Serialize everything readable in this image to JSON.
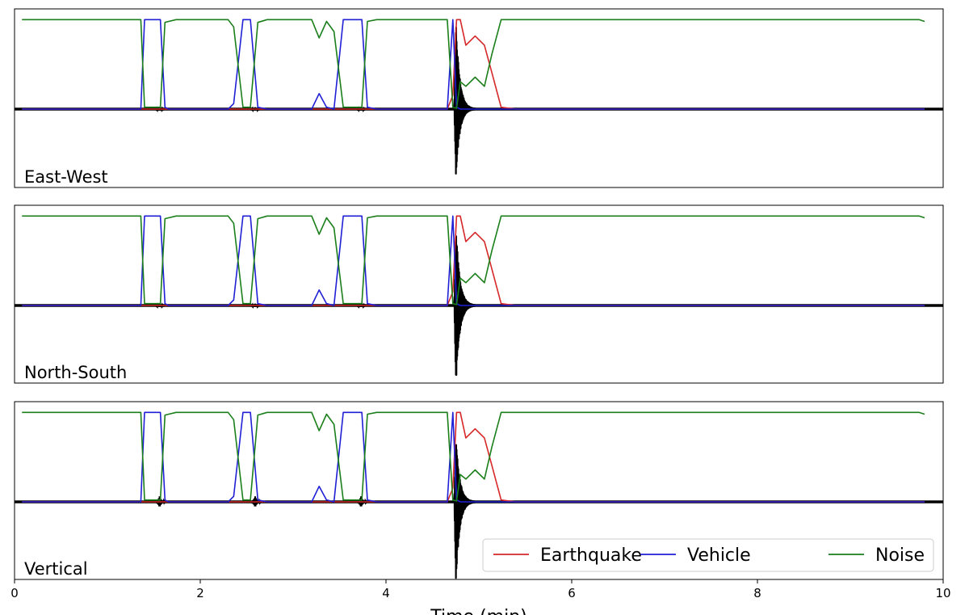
{
  "chart_data": {
    "type": "line",
    "xlabel": "Time (min)",
    "xlim": [
      0,
      10
    ],
    "x_ticks": [
      "0",
      "2",
      "4",
      "6",
      "8",
      "10"
    ],
    "shared_x_axis": true,
    "grid": false,
    "legend": {
      "placement": "bottom-right",
      "panel": 2,
      "entries": [
        "Earthquake",
        "Vehicle",
        "Noise"
      ]
    },
    "colors": {
      "Earthquake": "#d62728",
      "Vehicle": "#1f1fd6",
      "Noise": "#1a7f1a",
      "waveform": "#000000"
    },
    "x_breakpoints": [
      0.08,
      1.33,
      1.36,
      1.4,
      1.57,
      1.62,
      1.66,
      1.74,
      1.84,
      1.96,
      2.3,
      2.36,
      2.46,
      2.54,
      2.62,
      2.72,
      2.78,
      2.9,
      3.2,
      3.28,
      3.36,
      3.44,
      3.54,
      3.64,
      3.74,
      3.8,
      3.9,
      3.96,
      4.06,
      4.66,
      4.72,
      4.76,
      4.8,
      4.86,
      4.96,
      5.06,
      5.14,
      5.24,
      5.4,
      9.5,
      9.74,
      9.8
    ],
    "series": [
      {
        "name": "Earthquake",
        "values": [
          0,
          0,
          0,
          0,
          0,
          0,
          0,
          0,
          0,
          0,
          0,
          0,
          0,
          0,
          0,
          0,
          0,
          0,
          0,
          0,
          0,
          0,
          0,
          0,
          0,
          0,
          0,
          0,
          0,
          0,
          0.15,
          0.98,
          0.98,
          0.7,
          0.8,
          0.7,
          0.4,
          0.02,
          0,
          0,
          0,
          0
        ]
      },
      {
        "name": "Vehicle",
        "values": [
          0,
          0,
          0,
          0.98,
          0.98,
          0.02,
          0,
          0,
          0,
          0,
          0,
          0.06,
          0.98,
          0.98,
          0.02,
          0,
          0,
          0,
          0,
          0.17,
          0.02,
          0,
          0.98,
          0.98,
          0.98,
          0.02,
          0,
          0,
          0,
          0,
          0.98,
          0.02,
          0,
          0,
          0,
          0,
          0,
          0,
          0,
          0,
          0,
          0
        ]
      },
      {
        "name": "Noise",
        "values": [
          0.98,
          0.98,
          0.98,
          0.02,
          0.02,
          0.95,
          0.96,
          0.98,
          0.98,
          0.98,
          0.98,
          0.9,
          0.02,
          0.02,
          0.95,
          0.98,
          0.98,
          0.98,
          0.98,
          0.78,
          0.96,
          0.85,
          0.02,
          0.02,
          0.02,
          0.96,
          0.98,
          0.98,
          0.98,
          0.98,
          0.02,
          0.01,
          0.3,
          0.25,
          0.35,
          0.25,
          0.6,
          0.98,
          0.98,
          0.98,
          0.98,
          0.96
        ]
      }
    ],
    "panels": [
      {
        "label": "East-West",
        "waveform_up": 0.97,
        "waveform_down": 0.74,
        "small_events": [
          1.57,
          2.6,
          3.74
        ],
        "small_amp": 0.02
      },
      {
        "label": "North-South",
        "waveform_up": 0.87,
        "waveform_down": 0.86,
        "small_events": [
          1.57,
          2.6,
          3.74
        ],
        "small_amp": 0.02
      },
      {
        "label": "Vertical",
        "waveform_up": 0.73,
        "waveform_down": 0.86,
        "small_events": [
          1.57,
          2.6,
          3.74
        ],
        "small_amp": 0.06
      }
    ]
  }
}
